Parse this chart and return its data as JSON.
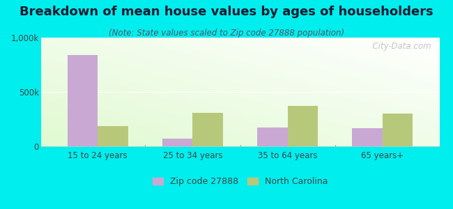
{
  "title": "Breakdown of mean house values by ages of householders",
  "subtitle": "(Note: State values scaled to Zip code 27888 population)",
  "categories": [
    "15 to 24 years",
    "25 to 34 years",
    "35 to 64 years",
    "65 years+"
  ],
  "zip_values": [
    840000,
    70000,
    175000,
    165000
  ],
  "nc_values": [
    185000,
    310000,
    370000,
    300000
  ],
  "ylim": [
    0,
    1000000
  ],
  "ytick_labels": [
    "0",
    "500k",
    "1,000k"
  ],
  "zip_color": "#c9a8d4",
  "nc_color": "#b8c87a",
  "background_color": "#00eeee",
  "zip_label": "Zip code 27888",
  "nc_label": "North Carolina",
  "watermark": "  City-Data.com",
  "bar_width": 0.32,
  "title_fontsize": 13,
  "subtitle_fontsize": 8.5,
  "tick_fontsize": 8.5,
  "legend_fontsize": 9
}
